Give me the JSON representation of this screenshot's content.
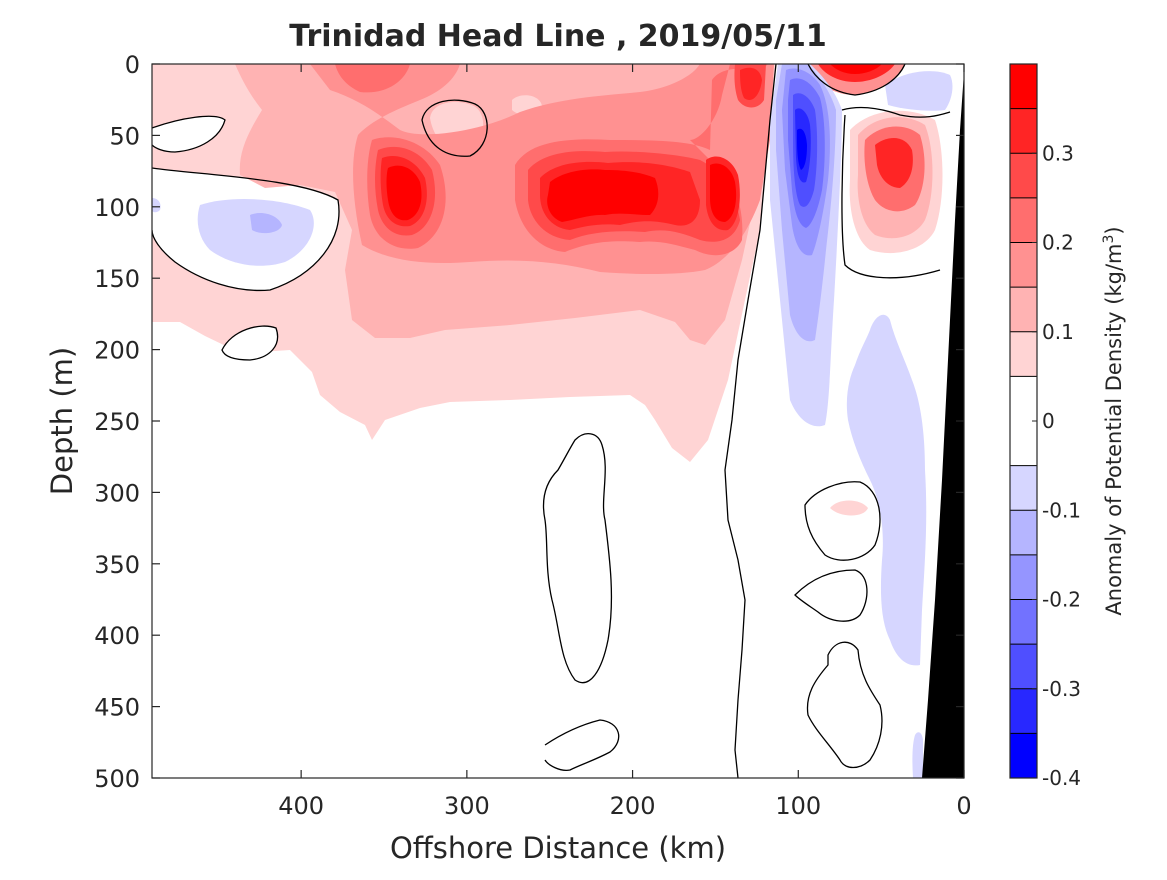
{
  "chart_data": {
    "type": "heatmap",
    "title": "Trinidad Head Line , 2019/05/11",
    "xlabel": "Offshore Distance (km)",
    "ylabel": "Depth (m)",
    "xlim": [
      490,
      0
    ],
    "ylim": [
      0,
      500
    ],
    "x_reversed": true,
    "y_reversed": true,
    "xticks": [
      400,
      300,
      200,
      100,
      0
    ],
    "yticks": [
      0,
      50,
      100,
      150,
      200,
      250,
      300,
      350,
      400,
      450,
      500
    ],
    "grid": false,
    "colorbar": {
      "label": "Anomaly of Potential Density (kg/m",
      "label_sup": "3",
      "label_end": ")",
      "range": [
        -0.4,
        0.4
      ],
      "ticks": [
        0.3,
        0.2,
        0.1,
        0,
        -0.1,
        -0.2,
        -0.3,
        -0.4
      ],
      "ticklabels": [
        "0.3",
        "0.2",
        "0.1",
        "0",
        "-0.1",
        "-0.2",
        "-0.3",
        "-0.4"
      ],
      "levels": [
        -0.4,
        -0.35,
        -0.3,
        -0.25,
        -0.2,
        -0.15,
        -0.1,
        -0.05,
        0.05,
        0.1,
        0.15,
        0.2,
        0.25,
        0.3,
        0.35,
        0.4
      ],
      "colors": [
        "#0000ff",
        "#2828ff",
        "#4f4fff",
        "#7272ff",
        "#9595ff",
        "#b5b5ff",
        "#d6d6ff",
        "#ffffff",
        "#ffd4d4",
        "#ffb3b3",
        "#ff9191",
        "#ff6e6e",
        "#ff4a4a",
        "#ff2525",
        "#ff0000"
      ]
    },
    "anomaly_features": [
      {
        "x": 340,
        "y": 100,
        "value": 0.4
      },
      {
        "x": 240,
        "y": 100,
        "value": 0.35
      },
      {
        "x": 210,
        "y": 80,
        "value": 0.35
      },
      {
        "x": 145,
        "y": 95,
        "value": 0.4
      },
      {
        "x": 360,
        "y": 10,
        "value": 0.25
      },
      {
        "x": 135,
        "y": 20,
        "value": 0.3
      },
      {
        "x": 65,
        "y": 5,
        "value": 0.4
      },
      {
        "x": 45,
        "y": 65,
        "value": 0.35
      },
      {
        "x": 100,
        "y": 80,
        "value": -0.35
      },
      {
        "x": 100,
        "y": 170,
        "value": -0.15
      },
      {
        "x": 440,
        "y": 105,
        "value": -0.1
      },
      {
        "x": 40,
        "y": 20,
        "value": -0.1
      },
      {
        "x": 40,
        "y": 300,
        "value": -0.1
      },
      {
        "x": 70,
        "y": 310,
        "value": 0.1
      }
    ],
    "bathymetry_color": "#000000"
  }
}
